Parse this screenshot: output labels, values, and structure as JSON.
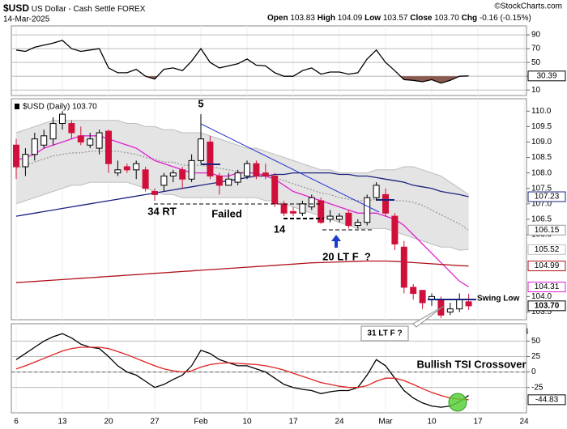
{
  "header": {
    "symbol": "$USD",
    "name": "US Dollar - Cash Settle",
    "exchange": "FOREX",
    "date": "14-Mar-2025",
    "ohlc": [
      {
        "label": "Open",
        "value": "103.83"
      },
      {
        "label": "High",
        "value": "104.09"
      },
      {
        "label": "Low",
        "value": "103.57"
      },
      {
        "label": "Close",
        "value": "103.70"
      },
      {
        "label": "Chg",
        "value": "-0.16 (-0.15%)"
      }
    ],
    "credit": "©StockCharts.com"
  },
  "chart_data": [
    {
      "type": "line",
      "ylim": [
        2,
        103
      ],
      "yticks": [
        90,
        70,
        50,
        30,
        10
      ],
      "fill_below": 30,
      "fill_color": "#8a5a50",
      "series": [
        {
          "color": "#000000",
          "show_last": true,
          "values": [
            68,
            66,
            72,
            75,
            78,
            82,
            70,
            66,
            68,
            70,
            42,
            35,
            35,
            40,
            30,
            26,
            40,
            42,
            38,
            52,
            70,
            50,
            42,
            45,
            48,
            55,
            46,
            45,
            35,
            30,
            30,
            38,
            42,
            33,
            36,
            36,
            33,
            35,
            55,
            68,
            50,
            38,
            25,
            24,
            22,
            25,
            20,
            24,
            30,
            30.39
          ]
        }
      ]
    },
    {
      "type": "candlestick",
      "legend": "$USD (Daily) 103.70",
      "close_label": "103.70",
      "up_color": "#ffffff",
      "down_color": "#d0103a",
      "ylim": [
        103.25,
        110.4
      ],
      "yticks": [
        {
          "value": 110,
          "label": "110.0"
        },
        109.5,
        {
          "value": 109,
          "label": "109.0"
        },
        108.5,
        {
          "value": 108,
          "label": "108.0"
        },
        107.5,
        {
          "value": 107,
          "label": "107.0"
        },
        106.5,
        {
          "value": 106,
          "label": "106.0"
        },
        {
          "value": 104,
          "label": "104.0"
        },
        103.5
      ],
      "categories": [
        "6",
        null,
        null,
        null,
        null,
        "13",
        null,
        null,
        null,
        null,
        "20",
        null,
        null,
        null,
        null,
        "27",
        null,
        null,
        null,
        null,
        "Feb",
        null,
        null,
        null,
        null,
        "10",
        null,
        null,
        null,
        null,
        "17",
        null,
        null,
        null,
        null,
        "24",
        null,
        null,
        null,
        null,
        "Mar",
        null,
        null,
        null,
        null,
        "10",
        null,
        null,
        null,
        null,
        "17",
        null,
        null,
        null,
        null,
        "24",
        null,
        null,
        null,
        null
      ],
      "open": [
        108.9,
        108.2,
        108.6,
        108.9,
        109.1,
        109.6,
        109.6,
        109.2,
        108.9,
        108.8,
        109.35,
        108.0,
        108.2,
        108.1,
        108.1,
        107.4,
        107.6,
        107.9,
        108.1,
        107.8,
        108.4,
        109.0,
        107.9,
        107.6,
        107.7,
        107.9,
        108.3,
        108.0,
        107.9,
        107.0,
        106.75,
        106.7,
        106.9,
        107.1,
        106.5,
        106.5,
        106.7,
        106.3,
        106.4,
        107.2,
        107.3,
        106.6,
        105.6,
        104.3,
        104.2,
        103.9,
        103.9,
        103.5,
        103.6,
        103.83,
        null,
        null,
        null,
        null,
        null,
        null,
        null,
        null,
        null,
        null
      ],
      "high": [
        109.1,
        108.8,
        109.3,
        109.4,
        109.8,
        110.0,
        109.7,
        109.5,
        109.3,
        109.4,
        109.4,
        108.4,
        108.3,
        108.4,
        108.2,
        107.5,
        108.0,
        108.1,
        108.2,
        108.6,
        109.9,
        109.2,
        108.0,
        108.0,
        108.1,
        108.4,
        108.4,
        108.3,
        108.0,
        107.1,
        106.9,
        107.1,
        107.3,
        107.2,
        106.8,
        106.7,
        106.8,
        106.5,
        107.3,
        107.7,
        107.5,
        106.7,
        105.8,
        104.4,
        104.2,
        104.1,
        104.0,
        103.8,
        104.1,
        104.09,
        null,
        null,
        null,
        null,
        null,
        null,
        null,
        null,
        null,
        null
      ],
      "low": [
        107.8,
        107.9,
        108.4,
        108.8,
        108.9,
        109.4,
        109.1,
        108.9,
        108.8,
        108.6,
        108.0,
        107.9,
        108.0,
        107.8,
        107.4,
        107.1,
        107.4,
        107.7,
        107.5,
        107.7,
        108.3,
        107.8,
        107.3,
        107.6,
        107.6,
        107.8,
        107.8,
        107.8,
        106.9,
        106.6,
        106.6,
        106.6,
        106.8,
        106.35,
        106.4,
        106.4,
        106.2,
        106.2,
        106.3,
        107.1,
        106.6,
        105.5,
        104.1,
        103.9,
        103.6,
        103.7,
        103.3,
        103.4,
        103.5,
        103.57,
        null,
        null,
        null,
        null,
        null,
        null,
        null,
        null,
        null,
        null
      ],
      "close": [
        108.2,
        108.6,
        109.1,
        109.2,
        109.6,
        109.9,
        109.3,
        109.0,
        109.1,
        109.3,
        108.3,
        108.1,
        108.1,
        108.3,
        107.5,
        107.3,
        107.9,
        108.0,
        107.8,
        108.4,
        109.1,
        107.9,
        107.6,
        107.8,
        108.0,
        108.3,
        107.9,
        107.9,
        107.0,
        106.7,
        106.7,
        107.0,
        107.2,
        106.4,
        106.6,
        106.6,
        106.3,
        106.4,
        107.2,
        107.6,
        106.7,
        105.7,
        104.3,
        104.1,
        103.8,
        104.0,
        103.4,
        103.6,
        103.9,
        103.7,
        null,
        null,
        null,
        null,
        null,
        null,
        null,
        null,
        null,
        null
      ],
      "series": [
        {
          "color": "#bdbdbd",
          "band": "upper",
          "values": [
            109.3,
            109.4,
            109.5,
            109.6,
            109.7,
            109.7,
            109.7,
            109.7,
            109.7,
            109.7,
            109.7,
            109.7,
            109.6,
            109.6,
            109.5,
            109.5,
            109.4,
            109.4,
            109.3,
            109.3,
            109.3,
            109.2,
            109.1,
            109.0,
            108.9,
            108.8,
            108.8,
            108.7,
            108.6,
            108.5,
            108.4,
            108.3,
            108.2,
            108.1,
            108.1,
            108.0,
            108.0,
            108.0,
            108.0,
            108.1,
            108.1,
            108.1,
            108.2,
            108.2,
            108.1,
            108.0,
            107.9,
            107.7,
            107.5,
            107.3,
            null,
            null,
            null,
            null,
            null,
            null,
            null,
            null,
            null,
            null
          ]
        },
        {
          "color": "#bdbdbd",
          "band": "lower",
          "show_last": true,
          "values": [
            107.0,
            107.1,
            107.2,
            107.3,
            107.4,
            107.5,
            107.6,
            107.6,
            107.7,
            107.7,
            107.7,
            107.7,
            107.7,
            107.6,
            107.5,
            107.4,
            107.3,
            107.3,
            107.2,
            107.2,
            107.2,
            107.2,
            107.2,
            107.2,
            107.2,
            107.2,
            107.2,
            107.1,
            107.1,
            107.0,
            106.9,
            106.8,
            106.7,
            106.6,
            106.5,
            106.4,
            106.3,
            106.2,
            106.2,
            106.2,
            106.2,
            106.1,
            106.0,
            105.9,
            105.8,
            105.7,
            105.6,
            105.6,
            105.5,
            105.52,
            null,
            null,
            null,
            null,
            null,
            null,
            null,
            null,
            null,
            null
          ]
        },
        {
          "color": "#9a9a9a",
          "dash": true,
          "show_last": true,
          "values": [
            108.15,
            108.25,
            108.35,
            108.45,
            108.55,
            108.6,
            108.65,
            108.65,
            108.7,
            108.7,
            108.7,
            108.7,
            108.65,
            108.6,
            108.5,
            108.45,
            108.35,
            108.35,
            108.25,
            108.25,
            108.25,
            108.2,
            108.15,
            108.1,
            108.05,
            108.0,
            108.0,
            107.9,
            107.85,
            107.75,
            107.65,
            107.55,
            107.45,
            107.35,
            107.3,
            107.2,
            107.15,
            107.1,
            107.1,
            107.15,
            107.15,
            107.1,
            107.1,
            107.05,
            106.95,
            106.8,
            106.65,
            106.5,
            106.35,
            106.15,
            null,
            null,
            null,
            null,
            null,
            null,
            null,
            null,
            null,
            null
          ]
        },
        {
          "color": "#e020d0",
          "show_last": true,
          "values": [
            108.4,
            108.5,
            108.6,
            108.8,
            108.9,
            109.0,
            109.1,
            109.2,
            109.2,
            109.2,
            109.1,
            109.0,
            108.9,
            108.8,
            108.6,
            108.4,
            108.3,
            108.2,
            108.1,
            108.0,
            108.0,
            108.0,
            107.9,
            107.9,
            108.0,
            108.0,
            108.0,
            107.9,
            107.8,
            107.6,
            107.4,
            107.3,
            107.2,
            107.1,
            107.0,
            106.9,
            106.8,
            106.7,
            106.7,
            106.7,
            106.6,
            106.5,
            106.3,
            106.0,
            105.7,
            105.4,
            105.1,
            104.8,
            104.5,
            104.31,
            null,
            null,
            null,
            null,
            null,
            null,
            null,
            null,
            null,
            null
          ]
        },
        {
          "color": "#1a237e",
          "show_last": true,
          "values": [
            106.6,
            106.65,
            106.7,
            106.75,
            106.8,
            106.85,
            106.9,
            106.95,
            107.0,
            107.05,
            107.1,
            107.15,
            107.2,
            107.25,
            107.3,
            107.35,
            107.4,
            107.45,
            107.5,
            107.55,
            107.6,
            107.65,
            107.7,
            107.75,
            107.8,
            107.85,
            107.9,
            107.9,
            107.95,
            107.95,
            108.0,
            108.0,
            108.0,
            108.0,
            108.0,
            107.95,
            107.95,
            107.9,
            107.9,
            107.85,
            107.8,
            107.75,
            107.7,
            107.6,
            107.55,
            107.5,
            107.4,
            107.35,
            107.3,
            107.23,
            null,
            null,
            null,
            null,
            null,
            null,
            null,
            null,
            null,
            null
          ]
        },
        {
          "color": "#b0101a",
          "show_last": true,
          "values": [
            104.45,
            104.47,
            104.49,
            104.51,
            104.53,
            104.55,
            104.57,
            104.59,
            104.61,
            104.63,
            104.65,
            104.67,
            104.69,
            104.71,
            104.73,
            104.75,
            104.77,
            104.79,
            104.81,
            104.83,
            104.85,
            104.87,
            104.89,
            104.91,
            104.93,
            104.95,
            104.97,
            104.99,
            105.01,
            105.03,
            105.05,
            105.07,
            105.09,
            105.1,
            105.11,
            105.12,
            105.13,
            105.14,
            105.15,
            105.15,
            105.15,
            105.14,
            105.12,
            105.1,
            105.08,
            105.06,
            105.04,
            105.02,
            105.0,
            104.99,
            null,
            null,
            null,
            null,
            null,
            null,
            null,
            null,
            null,
            null
          ]
        }
      ],
      "annotations": [
        "5",
        "34 RT",
        "Failed",
        "14",
        "20 LT F  ?",
        "31 LT F ?",
        "Swing Low"
      ]
    },
    {
      "type": "line",
      "ylim": [
        -66,
        78
      ],
      "yticks": [
        50,
        25,
        0,
        -25
      ],
      "zero_line": true,
      "categories": [
        "6",
        null,
        null,
        null,
        null,
        "13",
        null,
        null,
        null,
        null,
        "20",
        null,
        null,
        null,
        null,
        "27",
        null,
        null,
        null,
        null,
        "Feb",
        null,
        null,
        null,
        null,
        "10",
        null,
        null,
        null,
        null,
        "17",
        null,
        null,
        null,
        null,
        "24",
        null,
        null,
        null,
        null,
        "Mar",
        null,
        null,
        null,
        null,
        "10",
        null,
        null,
        null,
        null,
        "17",
        null,
        null,
        null,
        null,
        "24",
        null,
        null,
        null,
        null
      ],
      "series": [
        {
          "color": "#000000",
          "values": [
            20,
            30,
            40,
            50,
            57,
            62,
            55,
            45,
            40,
            38,
            25,
            10,
            0,
            -5,
            -15,
            -25,
            -20,
            -12,
            -5,
            10,
            35,
            30,
            20,
            15,
            10,
            10,
            5,
            0,
            -10,
            -20,
            -25,
            -28,
            -30,
            -35,
            -32,
            -30,
            -30,
            -25,
            -5,
            20,
            10,
            -10,
            -30,
            -42,
            -50,
            -55,
            -57,
            -55,
            -48,
            -38,
            null,
            null,
            null,
            null,
            null,
            null,
            null,
            null,
            null,
            null
          ]
        },
        {
          "color": "#e02020",
          "show_last": true,
          "values": [
            5,
            10,
            16,
            22,
            28,
            34,
            38,
            40,
            40,
            40,
            38,
            33,
            28,
            22,
            16,
            10,
            5,
            2,
            0,
            2,
            8,
            12,
            14,
            15,
            14,
            13,
            12,
            10,
            7,
            3,
            -2,
            -7,
            -12,
            -17,
            -20,
            -23,
            -25,
            -25,
            -22,
            -15,
            -10,
            -10,
            -14,
            -20,
            -27,
            -33,
            -38,
            -42,
            -44,
            -44.83,
            null,
            null,
            null,
            null,
            null,
            null,
            null,
            null,
            null,
            null
          ]
        }
      ],
      "annotations": [
        "Bullish TSI Crossover"
      ]
    }
  ]
}
